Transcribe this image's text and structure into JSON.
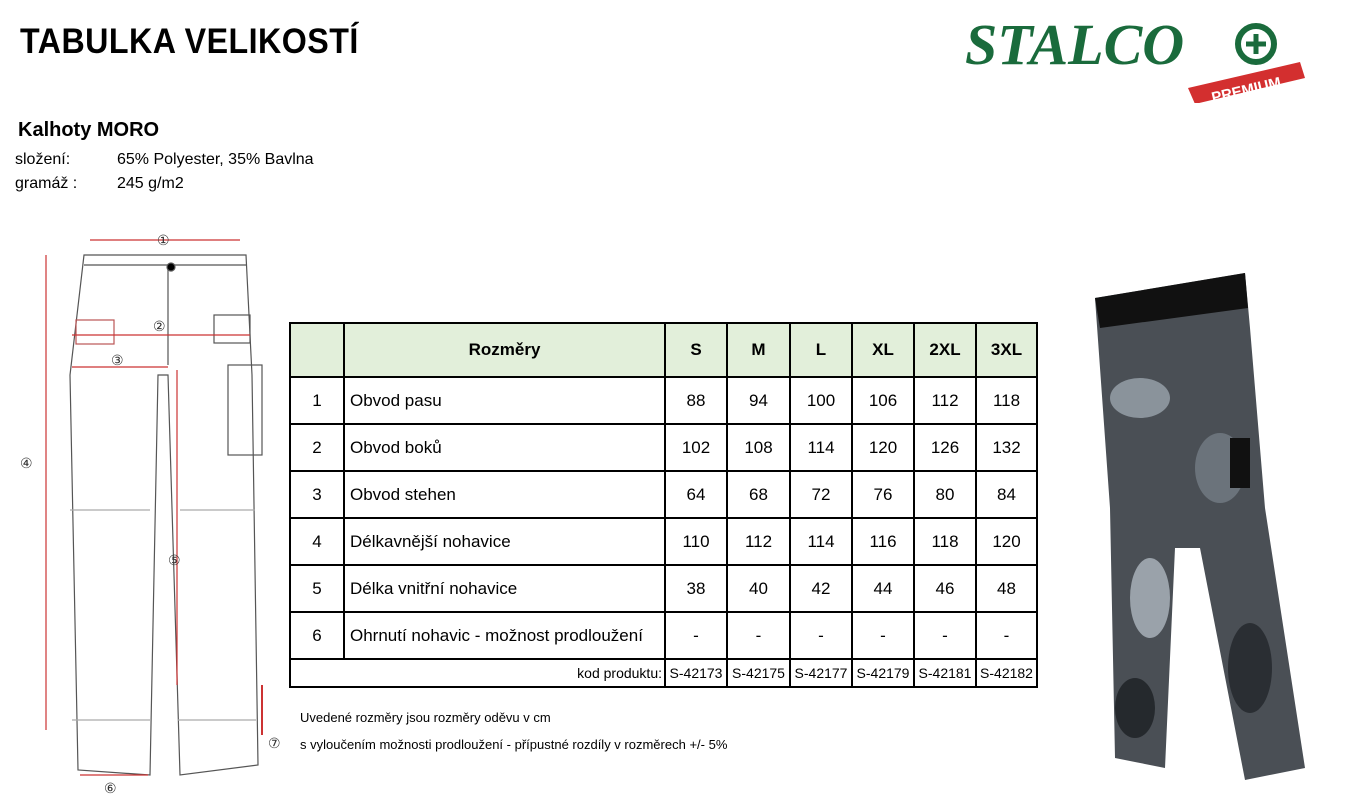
{
  "title": "TABULKA VELIKOSTÍ",
  "logo": {
    "text": "STALCO",
    "badge": "PREMIUM",
    "brand_color": "#1a6b3c",
    "badge_color": "#d32f2f"
  },
  "product": {
    "name": "Kalhoty MORO",
    "composition_label": "složení:",
    "composition": "65% Polyester, 35% Bavlna",
    "weight_label": "gramáž :",
    "weight": "245 g/m2"
  },
  "table": {
    "header": "Rozměry",
    "sizes": [
      "S",
      "M",
      "L",
      "XL",
      "2XL",
      "3XL"
    ],
    "rows": [
      {
        "num": "1",
        "label": "Obvod pasu",
        "values": [
          "88",
          "94",
          "100",
          "106",
          "112",
          "118"
        ]
      },
      {
        "num": "2",
        "label": "Obvod boků",
        "values": [
          "102",
          "108",
          "114",
          "120",
          "126",
          "132"
        ]
      },
      {
        "num": "3",
        "label": "Obvod stehen",
        "values": [
          "64",
          "68",
          "72",
          "76",
          "80",
          "84"
        ]
      },
      {
        "num": "4",
        "label": "Délkavnější nohavice",
        "values": [
          "110",
          "112",
          "114",
          "116",
          "118",
          "120"
        ]
      },
      {
        "num": "5",
        "label": "Délka vnitřní nohavice",
        "values": [
          "38",
          "40",
          "42",
          "44",
          "46",
          "48"
        ]
      },
      {
        "num": "6",
        "label": "Ohrnutí nohavic - možnost prodloužení",
        "values": [
          "-",
          "-",
          "-",
          "-",
          "-",
          "-"
        ]
      }
    ],
    "code_label": "kod produktu:",
    "codes": [
      "S-42173",
      "S-42175",
      "S-42177",
      "S-42179",
      "S-42181",
      "S-42182"
    ],
    "header_color": "#e2efda"
  },
  "notes": [
    "Uvedené rozměry jsou rozměry oděvu v cm",
    "s vyloučením možnosti prodloužení - přípustné rozdíly v rozměrech +/- 5%"
  ],
  "diagram_markers": [
    "①",
    "②",
    "③",
    "④",
    "⑤",
    "⑥",
    "⑦"
  ]
}
